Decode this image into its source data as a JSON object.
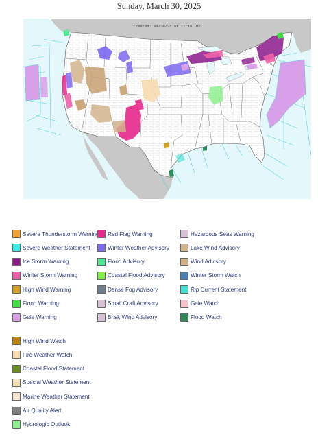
{
  "page": {
    "date_title": "Sunday, March 30, 2025"
  },
  "map": {
    "created_label": "Created: 03/30/25 at 11:18 UTC",
    "colors": {
      "ocean": "#e4f7fa",
      "land_us": "#ffffff",
      "land_other": "#c8c8c8",
      "marine_zone_lines": "#58d4dc",
      "county_lines": "#bbbbbb"
    }
  },
  "legend": {
    "columns": [
      [
        {
          "label": "Severe Thunderstorm Warning",
          "color": "#f0a030"
        },
        {
          "label": "Severe Weather Statement",
          "color": "#40e8e8"
        },
        {
          "label": "Ice Storm Warning",
          "color": "#8b1a8b"
        },
        {
          "label": "Winter Storm Warning",
          "color": "#f060a8"
        },
        {
          "label": "High Wind Warning",
          "color": "#d4a020"
        },
        {
          "label": "Flood Warning",
          "color": "#40e040"
        },
        {
          "label": "Gale Warning",
          "color": "#d8a0e8"
        }
      ],
      [
        {
          "label": "Red Flag Warning",
          "color": "#e8288c"
        },
        {
          "label": "Winter Weather Advisory",
          "color": "#7b68ee"
        },
        {
          "label": "Flood Advisory",
          "color": "#50e890"
        },
        {
          "label": "Coastal Flood Advisory",
          "color": "#80f040"
        },
        {
          "label": "Dense Fog Advisory",
          "color": "#708090"
        },
        {
          "label": "Small Craft Advisory",
          "color": "#d8c0d8"
        },
        {
          "label": "Brisk Wind Advisory",
          "color": "#d8c0d8"
        }
      ],
      [
        {
          "label": "Hazardous Seas Warning",
          "color": "#d8c0d8"
        },
        {
          "label": "Lake Wind Advisory",
          "color": "#d2b48c"
        },
        {
          "label": "Wind Advisory",
          "color": "#d2b48c"
        },
        {
          "label": "Winter Storm Watch",
          "color": "#4682b4"
        },
        {
          "label": "Rip Current Statement",
          "color": "#40e0d0"
        },
        {
          "label": "Gale Watch",
          "color": "#f8c0c8"
        },
        {
          "label": "Flood Watch",
          "color": "#2e8b57"
        }
      ]
    ],
    "extra": [
      {
        "label": "High Wind Watch",
        "color": "#b8860b"
      },
      {
        "label": "Fire Weather Watch",
        "color": "#f8dcb0"
      },
      {
        "label": "Coastal Flood Statement",
        "color": "#6b8e23"
      },
      {
        "label": "Special Weather Statement",
        "color": "#f8e4b8"
      },
      {
        "label": "Marine Weather Statement",
        "color": "#fae8d4"
      },
      {
        "label": "Air Quality Alert",
        "color": "#808080"
      },
      {
        "label": "Hydrologic Outlook",
        "color": "#90ee90"
      }
    ]
  }
}
